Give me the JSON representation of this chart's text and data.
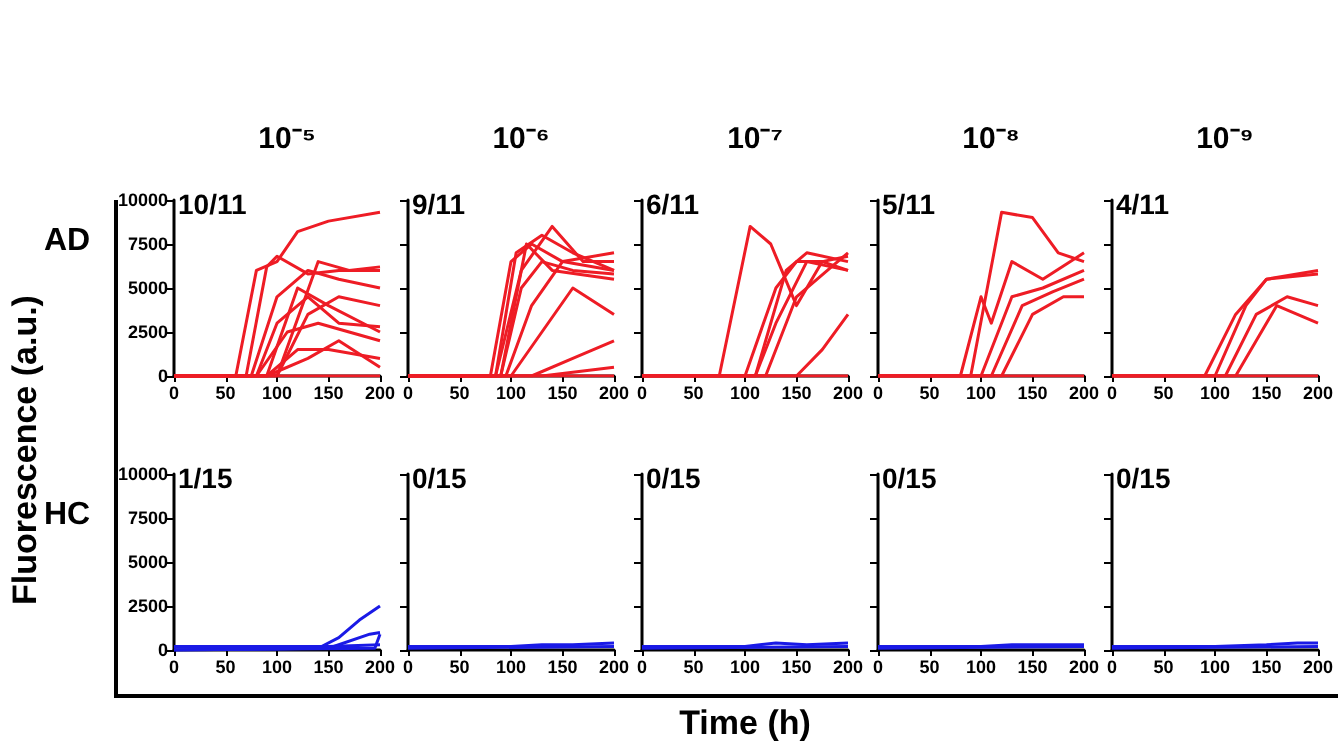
{
  "chart_data": [
    {
      "type": "line",
      "title": "10⁻⁵",
      "subtitle": "AD",
      "ylabel": "Fluorescence (a.u.)",
      "annotations": [
        "10/11"
      ],
      "xlim": [
        0,
        200
      ],
      "xticks": [
        0,
        50,
        100,
        150,
        200
      ],
      "ylim": [
        0,
        10000
      ],
      "yticks": [
        0,
        2500,
        5000,
        7500,
        10000
      ],
      "marker": "none",
      "line_style": "solid",
      "series": [
        {
          "color": "#ee1c25",
          "x": [
            0,
            60,
            80,
            100,
            120,
            150,
            200
          ],
          "values": [
            0,
            0,
            6000,
            6500,
            8200,
            8800,
            9300
          ]
        },
        {
          "color": "#ee1c25",
          "x": [
            0,
            70,
            90,
            100,
            130,
            160,
            200
          ],
          "values": [
            0,
            0,
            6200,
            6800,
            5800,
            6000,
            6000
          ]
        },
        {
          "color": "#ee1c25",
          "x": [
            0,
            75,
            100,
            130,
            160,
            200
          ],
          "values": [
            0,
            0,
            4500,
            6000,
            5500,
            5000
          ]
        },
        {
          "color": "#ee1c25",
          "x": [
            0,
            80,
            100,
            130,
            160,
            200
          ],
          "values": [
            0,
            0,
            3000,
            4500,
            3000,
            2800
          ]
        },
        {
          "color": "#ee1c25",
          "x": [
            0,
            80,
            110,
            140,
            170,
            200
          ],
          "values": [
            0,
            0,
            2500,
            3000,
            2500,
            2000
          ]
        },
        {
          "color": "#ee1c25",
          "x": [
            0,
            90,
            120,
            150,
            200
          ],
          "values": [
            0,
            0,
            1500,
            1500,
            1000
          ]
        },
        {
          "color": "#ee1c25",
          "x": [
            0,
            90,
            130,
            160,
            200
          ],
          "values": [
            0,
            0,
            1000,
            2000,
            500
          ]
        },
        {
          "color": "#ee1c25",
          "x": [
            0,
            100,
            130,
            160,
            200
          ],
          "values": [
            0,
            0,
            3500,
            4500,
            4000
          ]
        },
        {
          "color": "#ee1c25",
          "x": [
            0,
            90,
            120,
            150,
            200
          ],
          "values": [
            0,
            0,
            5000,
            4000,
            2500
          ]
        },
        {
          "color": "#ee1c25",
          "x": [
            0,
            100,
            140,
            170,
            200
          ],
          "values": [
            0,
            0,
            6500,
            6000,
            6200
          ]
        },
        {
          "color": "#ee1c25",
          "x": [
            0,
            200
          ],
          "values": [
            0,
            0
          ]
        }
      ]
    },
    {
      "type": "line",
      "title": "10⁻⁶",
      "annotations": [
        "9/11"
      ],
      "xlim": [
        0,
        200
      ],
      "xticks": [
        0,
        50,
        100,
        150,
        200
      ],
      "ylim": [
        0,
        10000
      ],
      "yticks": [
        0,
        2500,
        5000,
        7500,
        10000
      ],
      "tick_labels": "x",
      "marker": "none",
      "line_style": "solid",
      "series": [
        {
          "color": "#ee1c25",
          "x": [
            0,
            80,
            100,
            120,
            150,
            200
          ],
          "values": [
            0,
            0,
            6500,
            7500,
            6500,
            7000
          ]
        },
        {
          "color": "#ee1c25",
          "x": [
            0,
            85,
            105,
            130,
            160,
            200
          ],
          "values": [
            0,
            0,
            7000,
            8000,
            7000,
            6000
          ]
        },
        {
          "color": "#ee1c25",
          "x": [
            0,
            85,
            110,
            140,
            170,
            200
          ],
          "values": [
            0,
            0,
            6000,
            8500,
            6500,
            6500
          ]
        },
        {
          "color": "#ee1c25",
          "x": [
            0,
            90,
            110,
            130,
            160,
            200
          ],
          "values": [
            0,
            0,
            5000,
            6500,
            6000,
            5800
          ]
        },
        {
          "color": "#ee1c25",
          "x": [
            0,
            90,
            115,
            140,
            200
          ],
          "values": [
            0,
            0,
            7500,
            6000,
            5500
          ]
        },
        {
          "color": "#ee1c25",
          "x": [
            0,
            95,
            120,
            150,
            200
          ],
          "values": [
            0,
            0,
            4000,
            6500,
            6000
          ]
        },
        {
          "color": "#ee1c25",
          "x": [
            0,
            100,
            130,
            160,
            200
          ],
          "values": [
            0,
            0,
            2500,
            5000,
            3500
          ]
        },
        {
          "color": "#ee1c25",
          "x": [
            0,
            120,
            160,
            200
          ],
          "values": [
            0,
            0,
            1000,
            2000
          ]
        },
        {
          "color": "#ee1c25",
          "x": [
            0,
            130,
            200
          ],
          "values": [
            0,
            0,
            500
          ]
        },
        {
          "color": "#ee1c25",
          "x": [
            0,
            200
          ],
          "values": [
            0,
            0
          ]
        }
      ]
    },
    {
      "type": "line",
      "title": "10⁻⁷",
      "annotations": [
        "6/11"
      ],
      "xlim": [
        0,
        200
      ],
      "xticks": [
        0,
        50,
        100,
        150,
        200
      ],
      "ylim": [
        0,
        10000
      ],
      "yticks": [
        0,
        2500,
        5000,
        7500,
        10000
      ],
      "tick_labels": "x",
      "marker": "none",
      "line_style": "solid",
      "series": [
        {
          "color": "#ee1c25",
          "x": [
            0,
            75,
            105,
            125,
            150,
            175,
            200
          ],
          "values": [
            0,
            0,
            8500,
            7500,
            4000,
            6500,
            6000
          ]
        },
        {
          "color": "#ee1c25",
          "x": [
            0,
            100,
            130,
            150,
            175,
            200
          ],
          "values": [
            0,
            0,
            5000,
            6500,
            6500,
            6800
          ]
        },
        {
          "color": "#ee1c25",
          "x": [
            0,
            110,
            140,
            160,
            200
          ],
          "values": [
            0,
            0,
            6000,
            7000,
            6500
          ]
        },
        {
          "color": "#ee1c25",
          "x": [
            0,
            110,
            130,
            160,
            200
          ],
          "values": [
            0,
            0,
            3000,
            6500,
            6000
          ]
        },
        {
          "color": "#ee1c25",
          "x": [
            0,
            120,
            150,
            180,
            200
          ],
          "values": [
            0,
            0,
            4500,
            6000,
            7000
          ]
        },
        {
          "color": "#ee1c25",
          "x": [
            0,
            150,
            175,
            200
          ],
          "values": [
            0,
            0,
            1500,
            3500
          ]
        },
        {
          "color": "#ee1c25",
          "x": [
            0,
            200
          ],
          "values": [
            0,
            0
          ]
        }
      ]
    },
    {
      "type": "line",
      "title": "10⁻⁸",
      "annotations": [
        "5/11"
      ],
      "xlim": [
        0,
        200
      ],
      "xticks": [
        0,
        50,
        100,
        150,
        200
      ],
      "ylim": [
        0,
        10000
      ],
      "yticks": [
        0,
        2500,
        5000,
        7500,
        10000
      ],
      "tick_labels": "x",
      "marker": "none",
      "line_style": "solid",
      "series": [
        {
          "color": "#ee1c25",
          "x": [
            0,
            90,
            120,
            150,
            175,
            200
          ],
          "values": [
            0,
            0,
            9300,
            9000,
            7000,
            6500
          ]
        },
        {
          "color": "#ee1c25",
          "x": [
            0,
            80,
            100,
            110,
            130,
            160,
            200
          ],
          "values": [
            0,
            0,
            4500,
            3000,
            6500,
            5500,
            7000
          ]
        },
        {
          "color": "#ee1c25",
          "x": [
            0,
            100,
            130,
            160,
            200
          ],
          "values": [
            0,
            0,
            4500,
            5000,
            6000
          ]
        },
        {
          "color": "#ee1c25",
          "x": [
            0,
            110,
            140,
            170,
            200
          ],
          "values": [
            0,
            0,
            4000,
            4800,
            5500
          ]
        },
        {
          "color": "#ee1c25",
          "x": [
            0,
            120,
            150,
            180,
            200
          ],
          "values": [
            0,
            0,
            3500,
            4500,
            4500
          ]
        },
        {
          "color": "#ee1c25",
          "x": [
            0,
            200
          ],
          "values": [
            0,
            0
          ]
        }
      ]
    },
    {
      "type": "line",
      "title": "10⁻⁹",
      "annotations": [
        "4/11"
      ],
      "xlim": [
        0,
        200
      ],
      "xticks": [
        0,
        50,
        100,
        150,
        200
      ],
      "ylim": [
        0,
        10000
      ],
      "yticks": [
        0,
        2500,
        5000,
        7500,
        10000
      ],
      "tick_labels": "x",
      "marker": "none",
      "line_style": "solid",
      "series": [
        {
          "color": "#ee1c25",
          "x": [
            0,
            90,
            120,
            150,
            200
          ],
          "values": [
            0,
            0,
            3500,
            5500,
            6000
          ]
        },
        {
          "color": "#ee1c25",
          "x": [
            0,
            100,
            130,
            150,
            200
          ],
          "values": [
            0,
            0,
            4000,
            5500,
            5800
          ]
        },
        {
          "color": "#ee1c25",
          "x": [
            0,
            110,
            140,
            170,
            200
          ],
          "values": [
            0,
            0,
            3500,
            4500,
            4000
          ]
        },
        {
          "color": "#ee1c25",
          "x": [
            0,
            120,
            140,
            160,
            200
          ],
          "values": [
            0,
            0,
            2000,
            4000,
            3000
          ]
        },
        {
          "color": "#ee1c25",
          "x": [
            0,
            200
          ],
          "values": [
            0,
            0
          ]
        }
      ]
    },
    {
      "type": "line",
      "subtitle": "HC",
      "annotations": [
        "1/15"
      ],
      "xlim": [
        0,
        200
      ],
      "xticks": [
        0,
        50,
        100,
        150,
        200
      ],
      "ylim": [
        0,
        10000
      ],
      "yticks": [
        0,
        2500,
        5000,
        7500,
        10000
      ],
      "marker": "none",
      "line_style": "solid",
      "series": [
        {
          "color": "#1a1ae6",
          "x": [
            0,
            140,
            160,
            180,
            200
          ],
          "values": [
            0,
            100,
            700,
            1700,
            2500
          ]
        },
        {
          "color": "#1a1ae6",
          "x": [
            0,
            150,
            190,
            200
          ],
          "values": [
            0,
            100,
            900,
            1000
          ]
        },
        {
          "color": "#1a1ae6",
          "x": [
            0,
            195,
            200
          ],
          "values": [
            0,
            100,
            900
          ]
        },
        {
          "color": "#1a1ae6",
          "x": [
            0,
            100,
            150,
            200
          ],
          "values": [
            200,
            200,
            200,
            300
          ]
        }
      ]
    },
    {
      "type": "line",
      "annotations": [
        "0/15"
      ],
      "xlim": [
        0,
        200
      ],
      "xticks": [
        0,
        50,
        100,
        150,
        200
      ],
      "ylim": [
        0,
        10000
      ],
      "yticks": [
        0,
        2500,
        5000,
        7500,
        10000
      ],
      "tick_labels": "x",
      "marker": "none",
      "line_style": "solid",
      "series": [
        {
          "color": "#1a1ae6",
          "x": [
            0,
            100,
            130,
            160,
            200
          ],
          "values": [
            200,
            200,
            300,
            300,
            400
          ]
        },
        {
          "color": "#1a1ae6",
          "x": [
            0,
            200
          ],
          "values": [
            100,
            200
          ]
        }
      ]
    },
    {
      "type": "line",
      "annotations": [
        "0/15"
      ],
      "xlabel": "Time (h)",
      "xlim": [
        0,
        200
      ],
      "xticks": [
        0,
        50,
        100,
        150,
        200
      ],
      "ylim": [
        0,
        10000
      ],
      "yticks": [
        0,
        2500,
        5000,
        7500,
        10000
      ],
      "tick_labels": "x",
      "marker": "none",
      "line_style": "solid",
      "series": [
        {
          "color": "#1a1ae6",
          "x": [
            0,
            100,
            130,
            160,
            200
          ],
          "values": [
            200,
            200,
            400,
            300,
            400
          ]
        },
        {
          "color": "#1a1ae6",
          "x": [
            0,
            200
          ],
          "values": [
            100,
            200
          ]
        }
      ]
    },
    {
      "type": "line",
      "annotations": [
        "0/15"
      ],
      "xlim": [
        0,
        200
      ],
      "xticks": [
        0,
        50,
        100,
        150,
        200
      ],
      "ylim": [
        0,
        10000
      ],
      "yticks": [
        0,
        2500,
        5000,
        7500,
        10000
      ],
      "tick_labels": "x",
      "marker": "none",
      "line_style": "solid",
      "series": [
        {
          "color": "#1a1ae6",
          "x": [
            0,
            100,
            130,
            160,
            200
          ],
          "values": [
            200,
            200,
            300,
            300,
            300
          ]
        },
        {
          "color": "#1a1ae6",
          "x": [
            0,
            200
          ],
          "values": [
            100,
            200
          ]
        }
      ]
    },
    {
      "type": "line",
      "annotations": [
        "0/15"
      ],
      "xlim": [
        0,
        200
      ],
      "xticks": [
        0,
        50,
        100,
        150,
        200
      ],
      "ylim": [
        0,
        10000
      ],
      "yticks": [
        0,
        2500,
        5000,
        7500,
        10000
      ],
      "tick_labels": "x",
      "marker": "none",
      "line_style": "solid",
      "series": [
        {
          "color": "#1a1ae6",
          "x": [
            0,
            100,
            150,
            180,
            200
          ],
          "values": [
            200,
            200,
            300,
            400,
            400
          ]
        },
        {
          "color": "#1a1ae6",
          "x": [
            0,
            200
          ],
          "values": [
            100,
            200
          ]
        }
      ]
    }
  ]
}
